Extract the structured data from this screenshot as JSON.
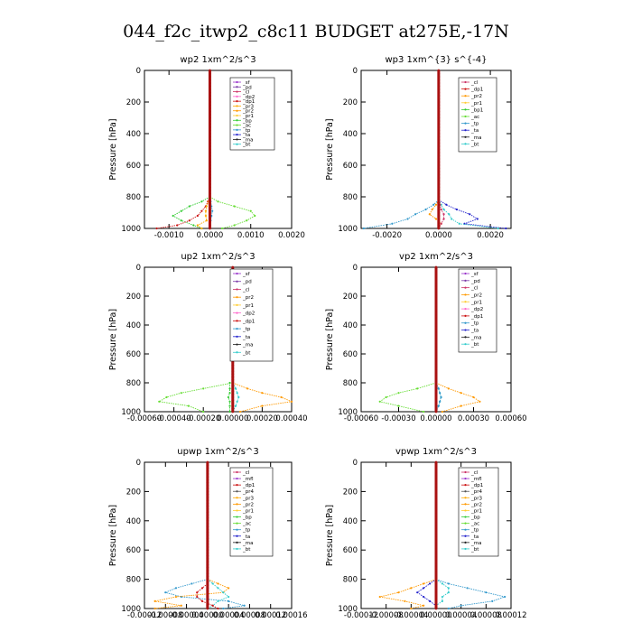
{
  "figure_title": "044_f2c_itwp2_c8c11  BUDGET at275E,-17N",
  "colors": {
    "_sf": "#9933cc",
    "_pd": "#7a3aa8",
    "_cl": "#cc3366",
    "_ma": "#222222",
    "_mfl": "#9933cc",
    "_dp1": "#cc1111",
    "_dp2": "#ff66cc",
    "_dp4": "#ee2222",
    "_pr1": "#ffcc33",
    "_pr2": "#ff9900",
    "_pr3": "#ffaa00",
    "_bp": "#33cc33",
    "_bp1": "#33cc33",
    "_ac": "#66dd33",
    "_tp": "#3399cc",
    "_ta": "#2222cc",
    "_bt": "#33cccc",
    "center": "#aa1111"
  },
  "chart_data": [
    {
      "type": "line",
      "title": "wp2   1xm^2/s^3",
      "ylabel": "Pressure [hPa]",
      "ylim": [
        1000,
        0
      ],
      "xlim": [
        -0.0016,
        0.002
      ],
      "xticks": [
        {
          "v": -0.001,
          "label": "-0.0010"
        },
        {
          "v": 0.0,
          "label": "0.0000"
        },
        {
          "v": 0.001,
          "label": "0.0010"
        },
        {
          "v": 0.002,
          "label": "0.0020"
        }
      ],
      "yticks": [
        0,
        200,
        400,
        600,
        800,
        1000
      ],
      "legend": [
        "_sf",
        "_pd",
        "_cl",
        "_dp2",
        "_dp1",
        "_pr3",
        "_pr2",
        "_pr1",
        "_bp",
        "_ac",
        "_tp",
        "_ta",
        "_ma",
        "_bt"
      ],
      "legend_placement": "top-right",
      "pressure": [
        800,
        830,
        860,
        890,
        920,
        950,
        980,
        1000
      ],
      "series": [
        {
          "key": "_ac",
          "values": [
            0,
            0.0002,
            0.0006,
            0.001,
            0.0011,
            0.0009,
            0.0006,
            0.0003
          ]
        },
        {
          "key": "_bp",
          "values": [
            0,
            -0.0002,
            -0.0005,
            -0.0007,
            -0.0009,
            -0.0007,
            -0.0004,
            -0.0002
          ]
        },
        {
          "key": "_dp1",
          "values": [
            0,
            -5e-05,
            -0.0001,
            -0.0002,
            -0.0003,
            -0.0005,
            -0.0008,
            -0.0013
          ]
        },
        {
          "key": "_pr3",
          "values": [
            0,
            -3e-05,
            -8e-05,
            -0.0001,
            -0.0001,
            -8e-05,
            -0.0003,
            -0.0002
          ]
        },
        {
          "key": "_tp",
          "values": [
            0,
            2e-05,
            4e-05,
            6e-05,
            4e-05,
            2e-05,
            0,
            0
          ]
        }
      ]
    },
    {
      "type": "line",
      "title": "wp3   1xm^{3} s^{-4}",
      "ylabel": "Pressure [hPa]",
      "ylim": [
        1000,
        0
      ],
      "xlim": [
        -0.003,
        0.0028
      ],
      "xticks": [
        {
          "v": -0.002,
          "label": "-0.0020"
        },
        {
          "v": 0.0,
          "label": "0.0000"
        },
        {
          "v": 0.002,
          "label": "0.0020"
        }
      ],
      "yticks": [
        0,
        200,
        400,
        600,
        800,
        1000
      ],
      "legend": [
        "_cl",
        "_dp1",
        "_pr2",
        "_pr1",
        "_bp1",
        "_ac",
        "_tp",
        "_ta",
        "_ma",
        "_bt"
      ],
      "legend_placement": "top-right",
      "pressure": [
        820,
        850,
        880,
        910,
        940,
        970,
        1000
      ],
      "series": [
        {
          "key": "_ta",
          "values": [
            0,
            0.0003,
            0.0007,
            0.0012,
            0.0015,
            0.001,
            0.0026
          ]
        },
        {
          "key": "_tp",
          "values": [
            0,
            -0.0002,
            -0.0005,
            -0.0009,
            -0.0012,
            -0.0018,
            -0.0029
          ]
        },
        {
          "key": "_bt",
          "values": [
            0,
            0.0001,
            0.0002,
            0.0004,
            0.0005,
            0.0008,
            0.0023
          ]
        },
        {
          "key": "_pr2",
          "values": [
            0,
            -0.0001,
            -0.00025,
            -0.00035,
            -0.0001,
            0.0001,
            0
          ]
        },
        {
          "key": "_cl",
          "values": [
            0,
            5e-05,
            0.0001,
            0.0002,
            0.0002,
            0.0001,
            0
          ]
        }
      ]
    },
    {
      "type": "line",
      "title": "up2   1xm^2/s^3",
      "ylabel": "Pressure [hPa]",
      "ylim": [
        1000,
        0
      ],
      "xlim": [
        -0.0006,
        0.0004
      ],
      "xticks": [
        {
          "v": -0.0006,
          "label": "-0.00060"
        },
        {
          "v": -0.0004,
          "label": "-0.00040"
        },
        {
          "v": -0.0002,
          "label": "-0.00020"
        },
        {
          "v": 0.0,
          "label": "0.00000"
        },
        {
          "v": 0.0002,
          "label": "0.00020"
        },
        {
          "v": 0.0004,
          "label": "0.00040"
        }
      ],
      "yticks": [
        0,
        200,
        400,
        600,
        800,
        1000
      ],
      "legend": [
        "_sf",
        "_pd",
        "_cl",
        "_pr2",
        "_pr1",
        "_dp2",
        "_dp1",
        "_tp",
        "_ta",
        "_ma",
        "_bt"
      ],
      "legend_placement": "top-right",
      "pressure": [
        800,
        840,
        870,
        900,
        930,
        960,
        1000
      ],
      "series": [
        {
          "key": "_ac",
          "values": [
            0,
            -0.0002,
            -0.00035,
            -0.00045,
            -0.0005,
            -0.0003,
            -0.0002
          ]
        },
        {
          "key": "_pr2",
          "values": [
            0,
            0.0001,
            0.0002,
            0.00033,
            0.0004,
            0.0002,
            5e-05
          ]
        },
        {
          "key": "_bt",
          "values": [
            0,
            2e-05,
            3e-05,
            4e-05,
            3e-05,
            2e-05,
            0
          ]
        },
        {
          "key": "_bp",
          "values": [
            -2e-05,
            -2e-05,
            -2e-05,
            -3e-05,
            -2e-05,
            -2e-05,
            -2e-05
          ]
        }
      ]
    },
    {
      "type": "line",
      "title": "vp2   1xm^2/s^3",
      "ylabel": "Pressure [hPa]",
      "ylim": [
        1000,
        0
      ],
      "xlim": [
        -0.0006,
        0.0006
      ],
      "xticks": [
        {
          "v": -0.0006,
          "label": "-0.00060"
        },
        {
          "v": -0.0003,
          "label": "-0.00030"
        },
        {
          "v": 0.0,
          "label": "0.00000"
        },
        {
          "v": 0.0003,
          "label": "0.00030"
        },
        {
          "v": 0.0006,
          "label": "0.00060"
        }
      ],
      "yticks": [
        0,
        200,
        400,
        600,
        800,
        1000
      ],
      "legend": [
        "_sf",
        "_pd",
        "_cl",
        "_pr2",
        "_pr1",
        "_dp2",
        "_dp1",
        "_tp",
        "_ta",
        "_ma",
        "_bt"
      ],
      "legend_placement": "top-right",
      "pressure": [
        800,
        840,
        870,
        900,
        930,
        960,
        1000
      ],
      "series": [
        {
          "key": "_ac",
          "values": [
            0,
            -0.00015,
            -0.0003,
            -0.0004,
            -0.00045,
            -0.0003,
            -0.0001
          ]
        },
        {
          "key": "_pr2",
          "values": [
            0,
            0.0001,
            0.0002,
            0.0003,
            0.00035,
            0.0002,
            5e-05
          ]
        },
        {
          "key": "_bt",
          "values": [
            0,
            2e-05,
            3e-05,
            4e-05,
            3e-05,
            2e-05,
            0
          ]
        },
        {
          "key": "_tp",
          "values": [
            0,
            2e-05,
            3e-05,
            4e-05,
            3e-05,
            2e-05,
            0
          ]
        }
      ]
    },
    {
      "type": "line",
      "title": "upwp   1xm^2/s^3",
      "ylabel": "Pressure [hPa]",
      "ylim": [
        1000,
        0
      ],
      "xlim": [
        -0.00012,
        0.00016
      ],
      "xticks": [
        {
          "v": -0.00012,
          "label": "-0.00012"
        },
        {
          "v": -8e-05,
          "label": "-0.00008"
        },
        {
          "v": -4e-05,
          "label": "-0.00004"
        },
        {
          "v": 0.0,
          "label": "0.00000"
        },
        {
          "v": 4e-05,
          "label": "0.00004"
        },
        {
          "v": 8e-05,
          "label": "0.00008"
        },
        {
          "v": 0.00012,
          "label": "0.00012"
        },
        {
          "v": 0.00016,
          "label": "0.00016"
        }
      ],
      "yticks": [
        0,
        200,
        400,
        600,
        800,
        1000
      ],
      "legend": [
        "_cl",
        "_mfl",
        "_dp1",
        "_pr4",
        "_pr3",
        "_pr2",
        "_pr1",
        "_bp",
        "_ac",
        "_tp",
        "_ta",
        "_ma",
        "_bt"
      ],
      "legend_placement": "top-right",
      "pressure": [
        800,
        830,
        860,
        890,
        920,
        950,
        980,
        1000
      ],
      "series": [
        {
          "key": "_tp",
          "values": [
            0,
            -3e-05,
            -6e-05,
            -8e-05,
            -5e-05,
            4e-05,
            7e-05,
            3e-05
          ]
        },
        {
          "key": "_pr2",
          "values": [
            0,
            2e-05,
            4e-05,
            3e-05,
            -6e-05,
            -0.0001,
            -5e-05,
            -0.0001
          ]
        },
        {
          "key": "_bt",
          "values": [
            0,
            1e-05,
            2e-05,
            3e-05,
            4e-05,
            2e-05,
            1e-05,
            0
          ]
        },
        {
          "key": "_dp1",
          "values": [
            0,
            0,
            -1e-05,
            -2e-05,
            -2e-05,
            -1e-05,
            1e-05,
            2e-05
          ]
        }
      ]
    },
    {
      "type": "line",
      "title": "vpwp   1xm^2/s^3",
      "ylabel": "Pressure [hPa]",
      "ylim": [
        1000,
        0
      ],
      "xlim": [
        -0.00012,
        0.00012
      ],
      "xticks": [
        {
          "v": -0.00012,
          "label": "-0.00012"
        },
        {
          "v": -8e-05,
          "label": "-0.00008"
        },
        {
          "v": -4e-05,
          "label": "-0.00004"
        },
        {
          "v": 0.0,
          "label": "0.00000"
        },
        {
          "v": 4e-05,
          "label": "0.00004"
        },
        {
          "v": 8e-05,
          "label": "0.00008"
        },
        {
          "v": 0.00012,
          "label": "0.00012"
        }
      ],
      "yticks": [
        0,
        200,
        400,
        600,
        800,
        1000
      ],
      "legend": [
        "_cl",
        "_mfl",
        "_dp1",
        "_pr4",
        "_pr3",
        "_pr2",
        "_pr1",
        "_bp",
        "_ac",
        "_tp",
        "_ta",
        "_ma",
        "_bt"
      ],
      "legend_placement": "top-right",
      "pressure": [
        800,
        830,
        860,
        890,
        920,
        950,
        980,
        1000
      ],
      "series": [
        {
          "key": "_tp",
          "values": [
            0,
            2e-05,
            5e-05,
            8e-05,
            0.00011,
            9e-05,
            4e-05,
            2e-05
          ]
        },
        {
          "key": "_pr2",
          "values": [
            0,
            -2e-05,
            -4e-05,
            -6e-05,
            -9e-05,
            -5e-05,
            -2e-05,
            -4e-05
          ]
        },
        {
          "key": "_bt",
          "values": [
            0,
            1e-05,
            2e-05,
            2e-05,
            1e-05,
            1e-05,
            0,
            0
          ]
        },
        {
          "key": "_ta",
          "values": [
            0,
            -1e-05,
            -2e-05,
            -3e-05,
            -2e-05,
            -1e-05,
            0,
            0
          ]
        }
      ]
    }
  ]
}
